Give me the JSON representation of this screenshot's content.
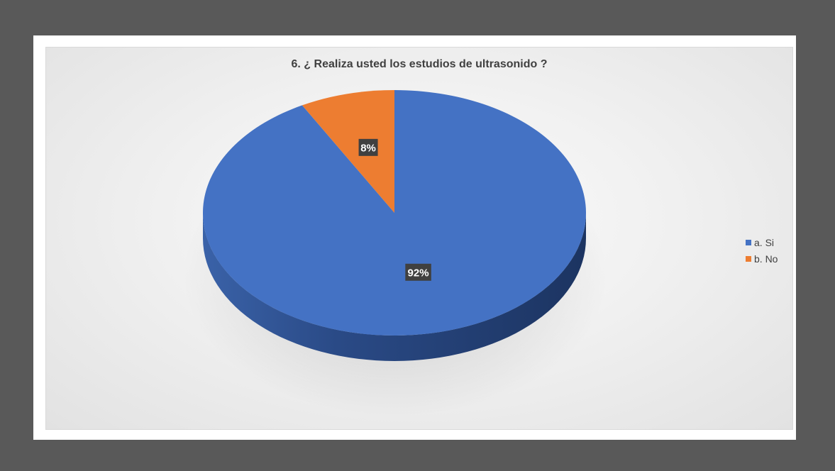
{
  "chart_data": {
    "type": "pie",
    "title": "6. ¿ Realiza usted los estudios de ultrasonido ?",
    "categories": [
      "a. Si",
      "b. No"
    ],
    "values": [
      92,
      8
    ],
    "data_labels": [
      "92%",
      "8%"
    ],
    "colors": [
      "#4472C4",
      "#ED7D31"
    ],
    "legend_position": "right",
    "style": "3d"
  }
}
